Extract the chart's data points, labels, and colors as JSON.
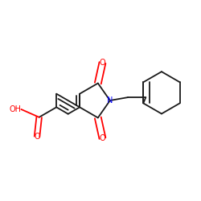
{
  "background_color": "#ffffff",
  "bond_color": "#1a1a1a",
  "oxygen_color": "#ff0000",
  "nitrogen_color": "#0000ff",
  "line_width": 1.3,
  "dbo": 0.025,
  "figsize": [
    2.5,
    2.5
  ],
  "dpi": 100,
  "xlim": [
    -0.65,
    1.05
  ],
  "ylim": [
    -0.48,
    0.48
  ]
}
